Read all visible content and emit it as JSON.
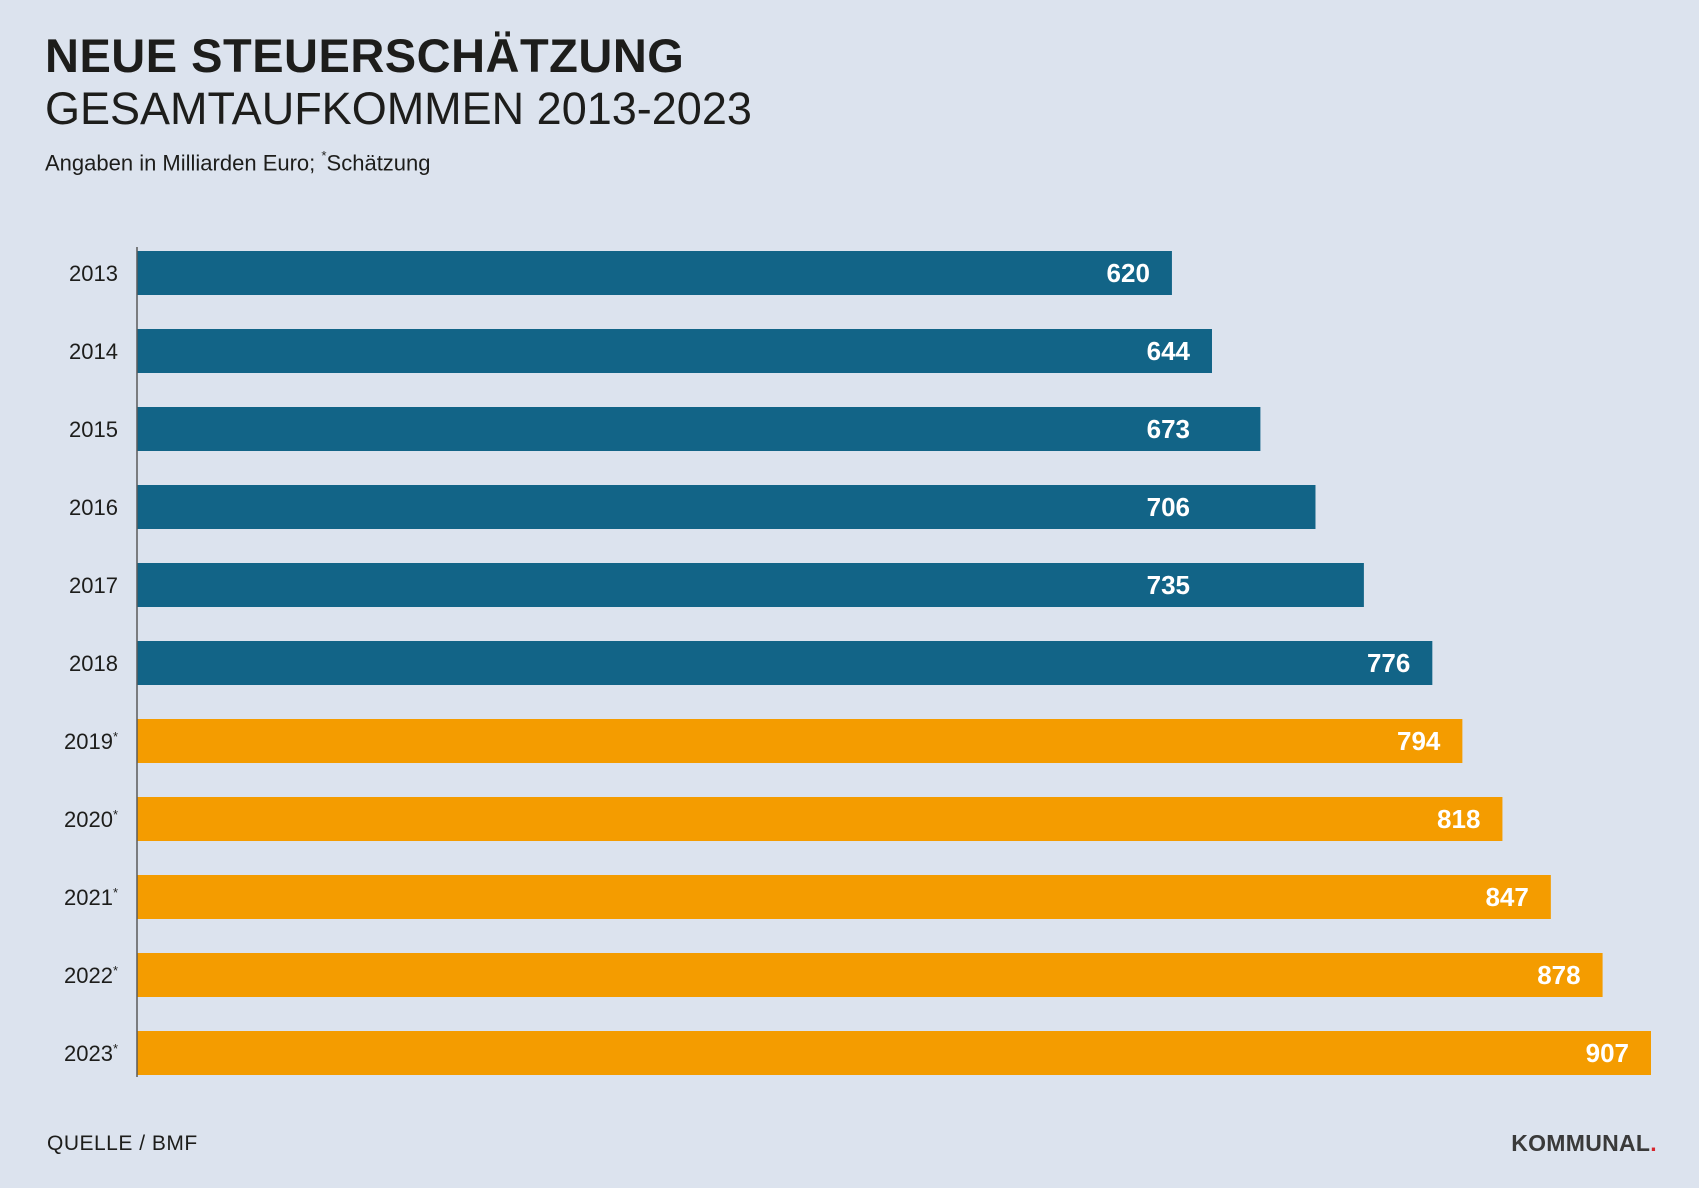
{
  "header": {
    "title": "NEUE STEUERSCHÄTZUNG",
    "subtitle": "GESAMTAUFKOMMEN 2013-2023",
    "note_prefix": "Angaben in Milliarden Euro;",
    "note_marker": "*",
    "note_suffix": "Schätzung"
  },
  "footer": {
    "source": "QUELLE / BMF",
    "logo_text": "KOMMUNAL",
    "logo_dot": "."
  },
  "colors": {
    "background": "#dce3ee",
    "actual": "#126487",
    "estimate": "#f49c00",
    "axis": "#5a5a5a"
  },
  "chart_data": {
    "type": "bar",
    "orientation": "horizontal",
    "title": "NEUE STEUERSCHÄTZUNG",
    "subtitle": "GESAMTAUFKOMMEN 2013-2023",
    "unit": "Angaben in Milliarden Euro",
    "categories": [
      "2013",
      "2014",
      "2015",
      "2016",
      "2017",
      "2018",
      "2019",
      "2020",
      "2021",
      "2022",
      "2023"
    ],
    "estimate_marker": "*",
    "estimated": [
      false,
      false,
      false,
      false,
      false,
      false,
      true,
      true,
      true,
      true,
      true
    ],
    "values": [
      620,
      644,
      673,
      706,
      735,
      776,
      794,
      818,
      847,
      878,
      907
    ],
    "xlim": [
      0,
      907
    ],
    "data_labels": true,
    "grid": false
  }
}
